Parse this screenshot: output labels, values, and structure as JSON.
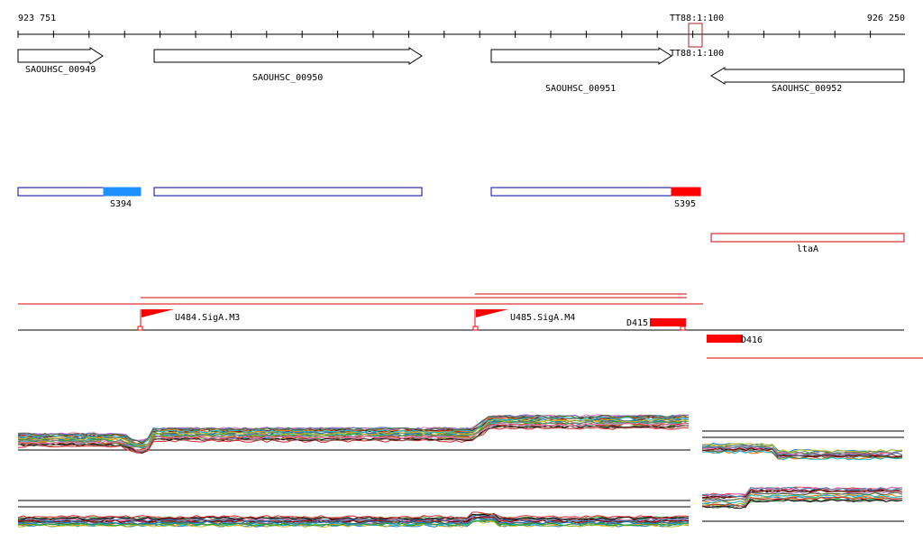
{
  "ruler": {
    "start_label": "923 751",
    "end_label": "926 250",
    "terminator_label_top": "TT88:1:100",
    "terminator_label_row": "TT88:1:100"
  },
  "genes": [
    {
      "label": "SAOUHSC_00949",
      "strand": "+"
    },
    {
      "label": "SAOUHSC_00950",
      "strand": "+"
    },
    {
      "label": "SAOUHSC_00951",
      "strand": "+"
    },
    {
      "label": "SAOUHSC_00952",
      "strand": "-"
    }
  ],
  "segments": [
    {
      "label": "S394",
      "color": "#1e90ff"
    },
    {
      "label": "S395",
      "color": "#ff0000"
    }
  ],
  "operon": {
    "label": "ltaA",
    "color": "#cc0000"
  },
  "promoters": [
    {
      "label": "U484.SigA.M3"
    },
    {
      "label": "U485.SigA.M4"
    }
  ],
  "downstream": [
    {
      "label": "D415"
    },
    {
      "label": "D416"
    }
  ],
  "colors": {
    "gene_outline": "#000000",
    "segment_outline": "#0000aa",
    "feature_red": "#ff0000"
  },
  "expression_palette": [
    "#000000",
    "#d62728",
    "#2ca02c",
    "#1f77b4",
    "#ff7f0e",
    "#9467bd",
    "#8c564b",
    "#e377c2",
    "#7f7f7f",
    "#bcbd22",
    "#17becf",
    "#556b2f",
    "#800000",
    "#4682b4"
  ]
}
